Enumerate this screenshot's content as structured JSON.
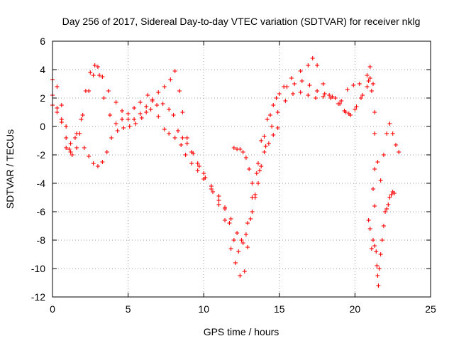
{
  "chart_data": {
    "type": "scatter",
    "title": "Day 256 of 2017, Sidereal Day-to-day VTEC variation (SDTVAR) for receiver nklg",
    "xlabel": "GPS time / hours",
    "ylabel": "SDTVAR / TECUs",
    "xlim": [
      0,
      25
    ],
    "ylim": [
      -12,
      6
    ],
    "xticks": [
      0,
      5,
      10,
      15,
      20,
      25
    ],
    "yticks": [
      -12,
      -10,
      -8,
      -6,
      -4,
      -2,
      0,
      2,
      4,
      6
    ],
    "grid": true,
    "marker": "+",
    "color": "#ff0000",
    "series": [
      {
        "points": [
          [
            0,
            3.3
          ],
          [
            0.3,
            2.8
          ],
          [
            0.6,
            1.5
          ],
          [
            0.9,
            0
          ],
          [
            1.1,
            -1.6
          ],
          [
            1.3,
            -2.0
          ],
          [
            1.6,
            -1.5
          ],
          [
            1.9,
            0.5
          ],
          [
            2.2,
            2.5
          ],
          [
            2.5,
            3.8
          ],
          [
            2.8,
            4.3
          ],
          [
            3.1,
            3.6
          ],
          [
            3.4,
            2.0
          ],
          [
            3.8,
            0.8
          ],
          [
            4.2,
            0.2
          ],
          [
            4.6,
            0.5
          ],
          [
            5.0,
            0.9
          ],
          [
            5.4,
            1.3
          ],
          [
            5.8,
            1.7
          ],
          [
            6.3,
            2.2
          ],
          [
            6.6,
            1.8
          ],
          [
            7.0,
            0.7
          ],
          [
            7.4,
            -0.2
          ],
          [
            7.7,
            -0.5
          ],
          [
            8.1,
            -0.8
          ],
          [
            8.5,
            -1.3
          ],
          [
            8.8,
            -2.0
          ],
          [
            9.2,
            -2.6
          ],
          [
            9.6,
            -3.1
          ],
          [
            10.0,
            -3.7
          ],
          [
            10.5,
            -4.4
          ],
          [
            11.0,
            -5.5
          ],
          [
            11.4,
            -6.6
          ],
          [
            11.8,
            -8.6
          ],
          [
            12.1,
            -9.6
          ],
          [
            12.4,
            -10.5
          ],
          [
            12.7,
            -10.2
          ],
          [
            12.9,
            -8.5
          ],
          [
            13.2,
            -6.0
          ],
          [
            13.5,
            -3.3
          ],
          [
            13.8,
            -1.0
          ],
          [
            14.2,
            0.5
          ],
          [
            14.6,
            1.5
          ],
          [
            15.0,
            2.3
          ],
          [
            15.5,
            2.8
          ],
          [
            16.0,
            3.0
          ],
          [
            16.5,
            3.2
          ],
          [
            17.0,
            2.9
          ],
          [
            17.5,
            2.5
          ],
          [
            18.0,
            2.3
          ],
          [
            18.5,
            2.1
          ],
          [
            19.0,
            1.6
          ],
          [
            19.4,
            1.0
          ],
          [
            19.7,
            0.8
          ],
          [
            20.1,
            1.4
          ],
          [
            20.5,
            2.2
          ],
          [
            20.9,
            3.2
          ],
          [
            21.1,
            2.5
          ],
          [
            21.3,
            -0.5
          ],
          [
            21.5,
            -2.5
          ],
          [
            21.7,
            -3.8
          ],
          [
            21.9,
            -2.0
          ],
          [
            22.1,
            -0.5
          ],
          [
            22.3,
            0.2
          ],
          [
            22.5,
            -0.5
          ],
          [
            22.7,
            -1.3
          ],
          [
            22.9,
            -1.8
          ]
        ]
      },
      {
        "points": [
          [
            0,
            2.2
          ],
          [
            0.3,
            1.3
          ],
          [
            0.6,
            0.3
          ],
          [
            0.9,
            -0.8
          ],
          [
            1.2,
            -1.2
          ],
          [
            1.6,
            -0.5
          ],
          [
            2.0,
            0.8
          ],
          [
            2.4,
            2.5
          ],
          [
            2.7,
            3.6
          ],
          [
            3.0,
            4.2
          ],
          [
            3.3,
            3.5
          ],
          [
            3.7,
            2.5
          ],
          [
            4.2,
            1.7
          ],
          [
            4.6,
            1.1
          ],
          [
            5.0,
            0.5
          ],
          [
            5.4,
            0.5
          ],
          [
            5.8,
            0.9
          ],
          [
            6.2,
            1.4
          ],
          [
            6.6,
            1.9
          ],
          [
            7.0,
            2.4
          ],
          [
            7.4,
            2.8
          ],
          [
            7.8,
            3.3
          ],
          [
            8.1,
            3.9
          ],
          [
            8.4,
            2.5
          ],
          [
            8.6,
            1.0
          ],
          [
            8.9,
            -0.8
          ],
          [
            9.2,
            -1.8
          ],
          [
            9.6,
            -2.6
          ],
          [
            10.0,
            -3.3
          ],
          [
            10.5,
            -4.2
          ],
          [
            11.0,
            -4.9
          ],
          [
            11.4,
            -5.7
          ],
          [
            11.7,
            -6.8
          ],
          [
            12.0,
            -8.0
          ],
          [
            12.3,
            -8.8
          ],
          [
            12.6,
            -8.2
          ],
          [
            12.9,
            -6.8
          ],
          [
            13.2,
            -5.0
          ],
          [
            13.6,
            -2.6
          ],
          [
            14.0,
            -0.7
          ],
          [
            14.4,
            0.8
          ],
          [
            14.8,
            2.0
          ],
          [
            15.3,
            2.8
          ],
          [
            15.8,
            3.4
          ],
          [
            16.4,
            3.9
          ],
          [
            16.9,
            4.3
          ],
          [
            17.2,
            4.8
          ],
          [
            17.5,
            4.3
          ],
          [
            17.9,
            3.0
          ],
          [
            18.3,
            2.2
          ],
          [
            18.7,
            2.0
          ],
          [
            19.1,
            1.8
          ],
          [
            19.5,
            2.6
          ],
          [
            19.9,
            2.9
          ],
          [
            20.3,
            3.0
          ],
          [
            20.8,
            3.6
          ],
          [
            21.0,
            4.2
          ],
          [
            21.2,
            3.0
          ],
          [
            21.3,
            1.0
          ]
        ]
      },
      {
        "points": [
          [
            0,
            1.5
          ],
          [
            0.3,
            1.0
          ],
          [
            0.6,
            0.5
          ],
          [
            0.9,
            -1.5
          ],
          [
            1.2,
            -1.8
          ],
          [
            1.5,
            -0.8
          ],
          [
            1.8,
            -0.5
          ],
          [
            2.1,
            -1.5
          ],
          [
            2.4,
            -2.1
          ],
          [
            2.7,
            -2.6
          ],
          [
            3.0,
            -2.8
          ],
          [
            3.3,
            -2.5
          ],
          [
            3.6,
            -1.8
          ],
          [
            3.9,
            -0.8
          ],
          [
            4.3,
            -0.3
          ],
          [
            4.7,
            -0.1
          ],
          [
            5.1,
            0.0
          ],
          [
            5.5,
            0.2
          ],
          [
            5.9,
            0.6
          ],
          [
            6.2,
            1.0
          ],
          [
            6.5,
            1.2
          ],
          [
            6.9,
            1.5
          ],
          [
            7.3,
            1.6
          ],
          [
            7.7,
            1.2
          ],
          [
            8.0,
            0.8
          ],
          [
            8.3,
            -0.3
          ],
          [
            8.6,
            -0.8
          ],
          [
            8.9,
            -1.2
          ],
          [
            9.3,
            -1.9
          ],
          [
            9.7,
            -2.8
          ],
          [
            10.1,
            -3.6
          ],
          [
            10.6,
            -4.6
          ],
          [
            11.0,
            -5.2
          ],
          [
            11.4,
            -5.8
          ],
          [
            11.8,
            -6.5
          ],
          [
            12.2,
            -7.5
          ],
          [
            12.5,
            -8.0
          ],
          [
            12.8,
            -7.6
          ],
          [
            13.1,
            -6.5
          ],
          [
            13.4,
            -4.8
          ],
          [
            13.7,
            -3.1
          ],
          [
            14.1,
            -1.4
          ],
          [
            14.5,
            0.0
          ],
          [
            14.9,
            1.0
          ],
          [
            15.4,
            1.8
          ],
          [
            15.9,
            2.3
          ],
          [
            16.4,
            2.4
          ],
          [
            16.9,
            2.2
          ],
          [
            17.4,
            2.0
          ],
          [
            17.9,
            2.1
          ],
          [
            18.4,
            2.0
          ],
          [
            18.9,
            1.6
          ],
          [
            19.3,
            1.1
          ],
          [
            19.6,
            0.9
          ],
          [
            20.0,
            1.2
          ],
          [
            20.4,
            2.0
          ],
          [
            20.8,
            2.8
          ],
          [
            21.0,
            3.4
          ]
        ]
      },
      {
        "points": [
          [
            12.0,
            -1.5
          ],
          [
            12.2,
            -1.6
          ],
          [
            12.4,
            -1.6
          ],
          [
            12.6,
            -1.8
          ],
          [
            12.8,
            -2.2
          ],
          [
            13.0,
            -3.0
          ],
          [
            13.2,
            -4.0
          ],
          [
            13.4,
            -5.0
          ],
          [
            13.6,
            -4.0
          ],
          [
            13.8,
            -2.8
          ],
          [
            14.0,
            -1.8
          ],
          [
            14.3,
            -1.2
          ],
          [
            14.6,
            -0.6
          ],
          [
            14.9,
            -0.1
          ]
        ]
      },
      {
        "points": [
          [
            20.9,
            -6.6
          ],
          [
            21.0,
            -7.2
          ],
          [
            21.1,
            -8.6
          ],
          [
            21.2,
            -8.0
          ],
          [
            21.3,
            -8.4
          ],
          [
            21.4,
            -8.8
          ],
          [
            21.45,
            -9.8
          ],
          [
            21.5,
            -10.5
          ],
          [
            21.55,
            -11.2
          ],
          [
            21.6,
            -10.0
          ],
          [
            21.7,
            -9.0
          ],
          [
            21.8,
            -8.0
          ],
          [
            21.9,
            -7.0
          ],
          [
            22.0,
            -6.0
          ],
          [
            22.1,
            -5.8
          ],
          [
            22.2,
            -5.5
          ],
          [
            22.3,
            -5.0
          ],
          [
            22.4,
            -4.8
          ],
          [
            22.5,
            -4.6
          ],
          [
            22.6,
            -4.7
          ],
          [
            21.2,
            -4.4
          ],
          [
            21.3,
            -5.6
          ],
          [
            21.3,
            -3.0
          ]
        ]
      }
    ]
  }
}
